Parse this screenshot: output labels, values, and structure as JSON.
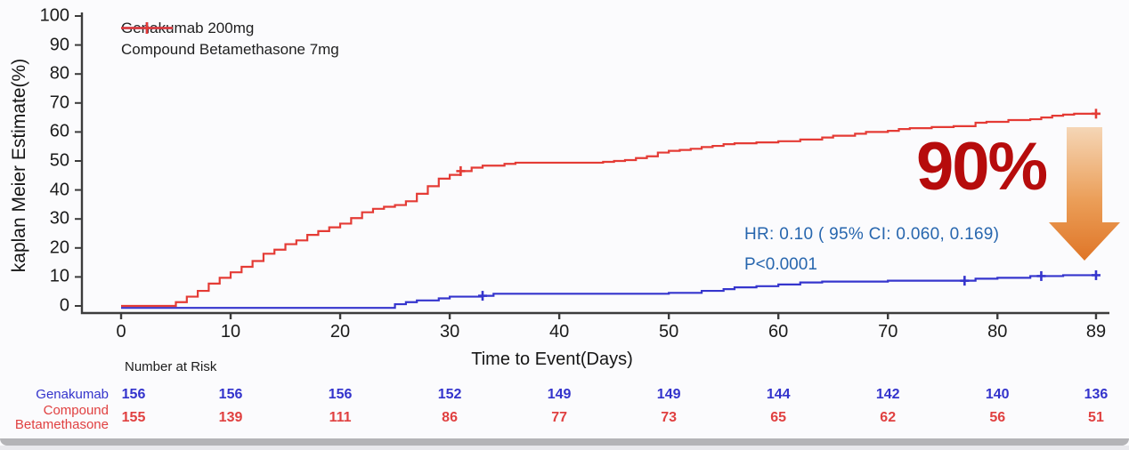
{
  "page": {
    "background": "#fbfbfd",
    "footer_bar_color": "#b4b4b7"
  },
  "legend": {
    "items": [
      {
        "label": "Genakumab 200mg",
        "color": "#3535cd"
      },
      {
        "label": "Compound Betamethasone 7mg",
        "color": "#e43b35"
      }
    ]
  },
  "chart_data": {
    "type": "line",
    "subtype": "kaplan-meier-step",
    "title": "",
    "xlabel": "Time to Event(Days)",
    "ylabel": "kaplan Meier Estimate(%)",
    "xlim": [
      0,
      89
    ],
    "ylim": [
      0,
      100
    ],
    "x_ticks": [
      0,
      10,
      20,
      30,
      40,
      50,
      60,
      70,
      80,
      89
    ],
    "y_ticks": [
      0,
      10,
      20,
      30,
      40,
      50,
      60,
      70,
      80,
      90,
      100
    ],
    "grid": false,
    "legend_position": "top-left",
    "series": [
      {
        "name": "Genakumab 200mg",
        "color": "#3535cd",
        "steps": [
          [
            0,
            0
          ],
          [
            25,
            0.6
          ],
          [
            26,
            1.3
          ],
          [
            27,
            1.9
          ],
          [
            29,
            2.6
          ],
          [
            30,
            3.2
          ],
          [
            33,
            3.5
          ],
          [
            34,
            4.2
          ],
          [
            50,
            4.5
          ],
          [
            53,
            5.2
          ],
          [
            55,
            5.8
          ],
          [
            56,
            6.4
          ],
          [
            58,
            6.8
          ],
          [
            60,
            7.4
          ],
          [
            62,
            8.1
          ],
          [
            64,
            8.4
          ],
          [
            70,
            8.7
          ],
          [
            78,
            9.4
          ],
          [
            80,
            9.7
          ],
          [
            83,
            10.3
          ],
          [
            86,
            10.6
          ],
          [
            89,
            10.6
          ]
        ],
        "censors": [
          [
            33,
            3.5
          ],
          [
            77,
            8.7
          ],
          [
            84,
            10.3
          ],
          [
            89,
            10.6
          ]
        ]
      },
      {
        "name": "Compound Betamethasone 7mg",
        "color": "#e43b35",
        "steps": [
          [
            0,
            0
          ],
          [
            4,
            0
          ],
          [
            5,
            1.3
          ],
          [
            6,
            3.2
          ],
          [
            7,
            5.2
          ],
          [
            8,
            7.7
          ],
          [
            9,
            9.7
          ],
          [
            10,
            11.6
          ],
          [
            11,
            13.5
          ],
          [
            12,
            15.5
          ],
          [
            13,
            18
          ],
          [
            14,
            19.4
          ],
          [
            15,
            21.3
          ],
          [
            16,
            22.6
          ],
          [
            17,
            24.5
          ],
          [
            18,
            25.8
          ],
          [
            19,
            27.1
          ],
          [
            20,
            28.4
          ],
          [
            21,
            30.3
          ],
          [
            22,
            32.3
          ],
          [
            23,
            33.5
          ],
          [
            24,
            34.2
          ],
          [
            25,
            34.8
          ],
          [
            26,
            36.1
          ],
          [
            27,
            38.7
          ],
          [
            28,
            41.3
          ],
          [
            29,
            43.9
          ],
          [
            30,
            45.2
          ],
          [
            31,
            46.5
          ],
          [
            32,
            47.7
          ],
          [
            33,
            48.4
          ],
          [
            35,
            49
          ],
          [
            36,
            49.4
          ],
          [
            43,
            49.4
          ],
          [
            44,
            49.7
          ],
          [
            45,
            50
          ],
          [
            46,
            50.3
          ],
          [
            47,
            51
          ],
          [
            48,
            51.6
          ],
          [
            49,
            52.9
          ],
          [
            50,
            53.5
          ],
          [
            51,
            53.8
          ],
          [
            52,
            54.2
          ],
          [
            53,
            54.8
          ],
          [
            54,
            55.2
          ],
          [
            55,
            55.8
          ],
          [
            56,
            56.1
          ],
          [
            58,
            56.4
          ],
          [
            60,
            56.8
          ],
          [
            62,
            57.4
          ],
          [
            64,
            58.1
          ],
          [
            65,
            58.7
          ],
          [
            67,
            59.4
          ],
          [
            68,
            60
          ],
          [
            70,
            60.4
          ],
          [
            71,
            61
          ],
          [
            72,
            61.3
          ],
          [
            74,
            61.7
          ],
          [
            76,
            62
          ],
          [
            78,
            63.2
          ],
          [
            79,
            63.5
          ],
          [
            81,
            64.1
          ],
          [
            83,
            64.4
          ],
          [
            84,
            65
          ],
          [
            85,
            65.6
          ],
          [
            86,
            66
          ],
          [
            87,
            66.3
          ],
          [
            89,
            66.3
          ]
        ],
        "censors": [
          [
            31,
            46.5
          ],
          [
            89,
            66.3
          ]
        ]
      }
    ]
  },
  "annotation": {
    "hr_text": "HR:  0.10  ( 95% CI:  0.060, 0.169)",
    "p_text": "P<0.0001",
    "color": "#2766ae"
  },
  "highlight": {
    "text": "90%",
    "color": "#b60c0c",
    "arrow_gradient_top": "#f5d6b6",
    "arrow_gradient_bottom": "#df7527"
  },
  "risk_table": {
    "title": "Number at Risk",
    "columns_days": [
      0,
      10,
      20,
      30,
      40,
      50,
      60,
      70,
      80,
      89
    ],
    "rows": [
      {
        "label_lines": [
          "Genakumab"
        ],
        "color": "#3333cc",
        "values": [
          156,
          156,
          156,
          152,
          149,
          149,
          144,
          142,
          140,
          136
        ]
      },
      {
        "label_lines": [
          "Compound",
          "Betamethasone"
        ],
        "color": "#e04040",
        "values": [
          155,
          139,
          111,
          86,
          77,
          73,
          65,
          62,
          56,
          51
        ]
      }
    ]
  }
}
